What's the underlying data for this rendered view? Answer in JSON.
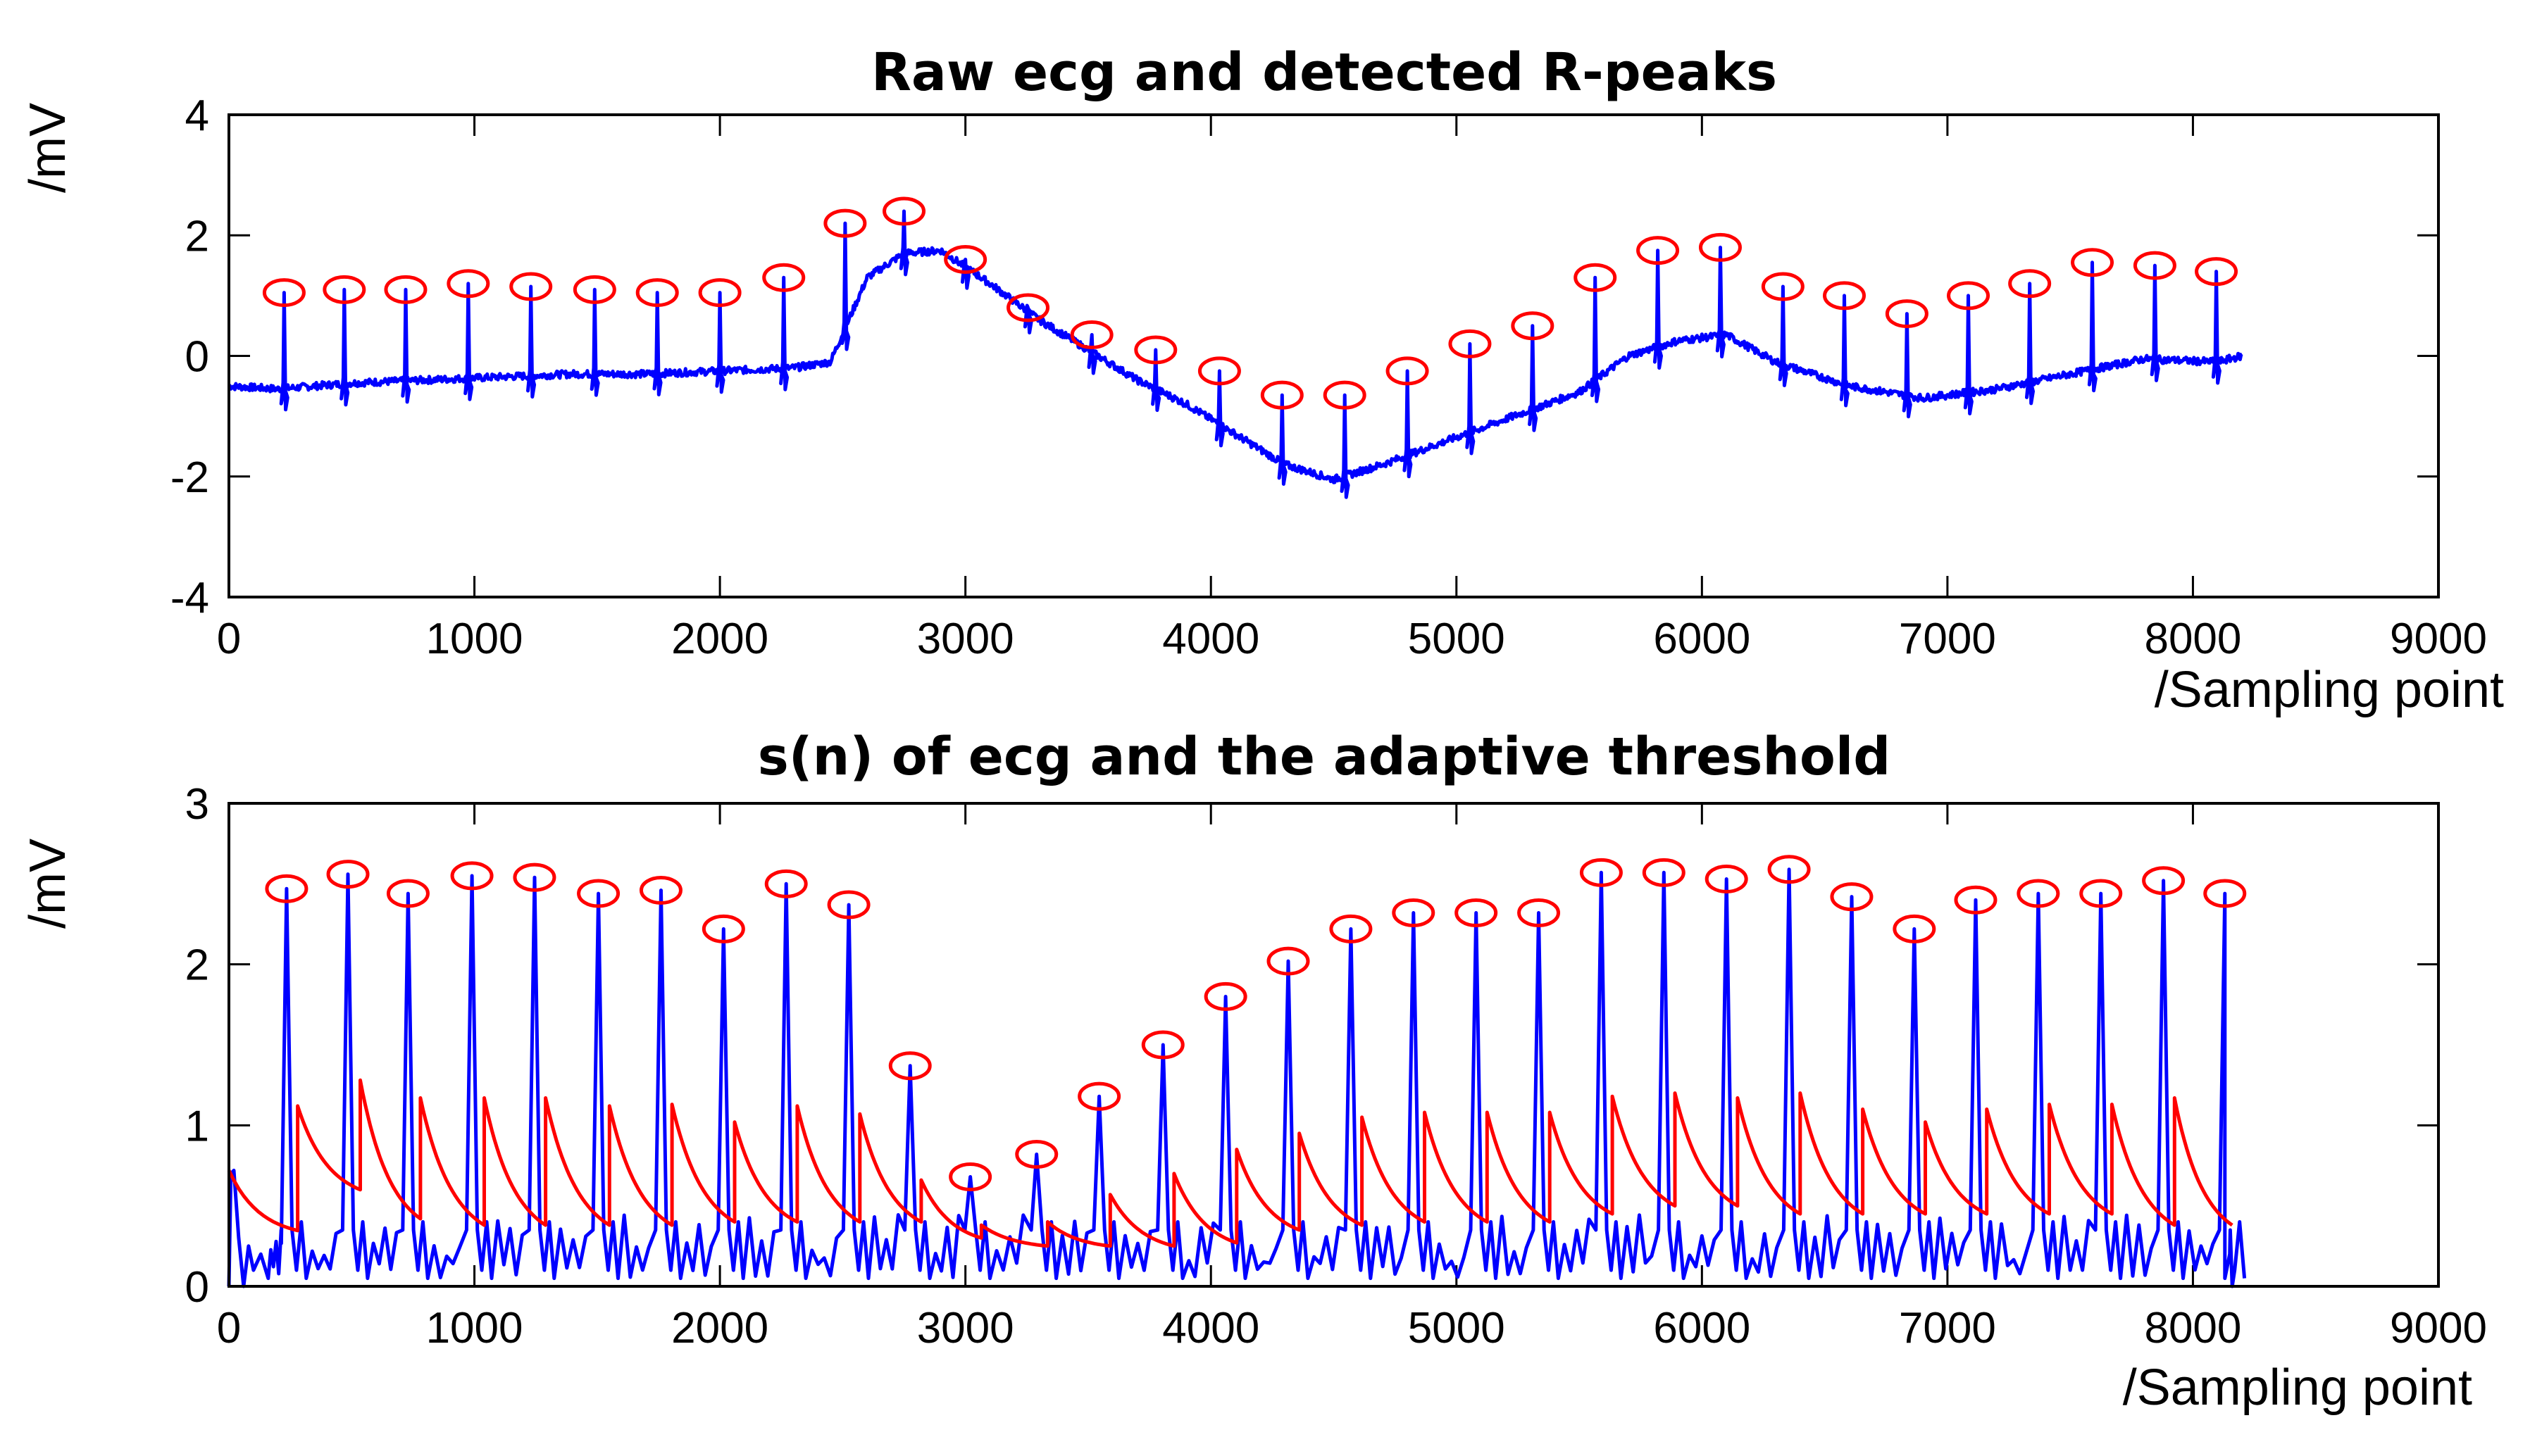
{
  "chart_data": [
    {
      "type": "line",
      "title": "Raw ecg and detected R-peaks",
      "xlabel": "/Sampling point",
      "ylabel": "/mV",
      "xlim": [
        0,
        9000
      ],
      "ylim": [
        -4,
        4
      ],
      "xticks": [
        0,
        1000,
        2000,
        3000,
        4000,
        5000,
        6000,
        7000,
        8000,
        9000
      ],
      "yticks": [
        4,
        2,
        0,
        -2,
        -4
      ],
      "colors": {
        "signal": "#0000ff",
        "peaks": "#ff0000"
      },
      "series": [
        {
          "name": "raw ecg",
          "baseline": {
            "x": [
              0,
              200,
              500,
              800,
              1100,
              1400,
              1700,
              2000,
              2300,
              2450,
              2600,
              2750,
              2900,
              3100,
              3300,
              3500,
              3700,
              3900,
              4100,
              4300,
              4500,
              4700,
              4900,
              5100,
              5300,
              5500,
              5700,
              5900,
              6100,
              6300,
              6600,
              6900,
              7200,
              7500,
              7800,
              8100,
              8200
            ],
            "y": [
              -0.5,
              -0.55,
              -0.45,
              -0.4,
              -0.35,
              -0.3,
              -0.3,
              -0.25,
              -0.2,
              -0.1,
              1.3,
              1.7,
              1.75,
              1.2,
              0.6,
              0.1,
              -0.4,
              -0.8,
              -1.3,
              -1.8,
              -2.05,
              -1.8,
              -1.5,
              -1.2,
              -0.9,
              -0.6,
              0.0,
              0.25,
              0.35,
              -0.1,
              -0.5,
              -0.7,
              -0.55,
              -0.3,
              -0.05,
              -0.1,
              0.0
            ]
          },
          "r_peaks": {
            "x": [
              225,
              470,
              720,
              975,
              1230,
              1490,
              1745,
              2000,
              2260,
              2510,
              2750,
              3000,
              3255,
              3515,
              3775,
              4035,
              4290,
              4545,
              4800,
              5055,
              5310,
              5565,
              5820,
              6075,
              6330,
              6580,
              6835,
              7085,
              7335,
              7590,
              7845,
              8095
            ],
            "y": [
              1.05,
              1.1,
              1.1,
              1.2,
              1.15,
              1.1,
              1.05,
              1.05,
              1.3,
              2.2,
              2.4,
              1.6,
              0.8,
              0.35,
              0.1,
              -0.25,
              -0.65,
              -0.65,
              -0.25,
              0.2,
              0.5,
              1.3,
              1.75,
              1.8,
              1.15,
              1.0,
              0.7,
              1.0,
              1.2,
              1.55,
              1.5,
              1.4
            ]
          }
        }
      ]
    },
    {
      "type": "line",
      "title": "s(n) of ecg and the adaptive threshold",
      "xlabel": "/Sampling point",
      "ylabel": "/mV",
      "xlim": [
        0,
        9000
      ],
      "ylim": [
        0,
        3
      ],
      "xticks": [
        0,
        1000,
        2000,
        3000,
        4000,
        5000,
        6000,
        7000,
        8000,
        9000
      ],
      "yticks": [
        3,
        2,
        1,
        0
      ],
      "colors": {
        "signal": "#0000ff",
        "threshold": "#ff0000",
        "peaks": "#ff0000"
      },
      "series": [
        {
          "name": "s(n)",
          "peaks": {
            "x": [
              235,
              485,
              730,
              990,
              1245,
              1505,
              1760,
              2015,
              2270,
              2525,
              2775,
              3020,
              3290,
              3545,
              3805,
              4060,
              4315,
              4570,
              4825,
              5080,
              5335,
              5590,
              5845,
              6100,
              6355,
              6610,
              6865,
              7115,
              7370,
              7625,
              7880,
              8130
            ],
            "y": [
              2.47,
              2.56,
              2.44,
              2.55,
              2.54,
              2.44,
              2.46,
              2.22,
              2.5,
              2.37,
              1.37,
              0.68,
              0.82,
              1.18,
              1.5,
              1.8,
              2.02,
              2.22,
              2.32,
              2.32,
              2.32,
              2.57,
              2.57,
              2.53,
              2.59,
              2.42,
              2.22,
              2.4,
              2.44,
              2.44,
              2.52,
              2.44
            ]
          }
        },
        {
          "name": "adaptive threshold",
          "start": {
            "x": 0,
            "y": 0.72
          },
          "segments": [
            {
              "x0": 280,
              "y0": 1.12,
              "y1": 0.6
            },
            {
              "x0": 535,
              "y0": 1.28,
              "y1": 0.42
            },
            {
              "x0": 780,
              "y0": 1.17,
              "y1": 0.38
            },
            {
              "x0": 1040,
              "y0": 1.17,
              "y1": 0.38
            },
            {
              "x0": 1290,
              "y0": 1.17,
              "y1": 0.38
            },
            {
              "x0": 1550,
              "y0": 1.12,
              "y1": 0.38
            },
            {
              "x0": 1805,
              "y0": 1.13,
              "y1": 0.4
            },
            {
              "x0": 2060,
              "y0": 1.02,
              "y1": 0.4
            },
            {
              "x0": 2315,
              "y0": 1.12,
              "y1": 0.4
            },
            {
              "x0": 2570,
              "y0": 1.07,
              "y1": 0.4
            },
            {
              "x0": 2820,
              "y0": 0.66,
              "y1": 0.3
            },
            {
              "x0": 3065,
              "y0": 0.38,
              "y1": 0.25
            },
            {
              "x0": 3335,
              "y0": 0.4,
              "y1": 0.25
            },
            {
              "x0": 3590,
              "y0": 0.57,
              "y1": 0.25
            },
            {
              "x0": 3850,
              "y0": 0.7,
              "y1": 0.27
            },
            {
              "x0": 4105,
              "y0": 0.85,
              "y1": 0.35
            },
            {
              "x0": 4360,
              "y0": 0.95,
              "y1": 0.38
            },
            {
              "x0": 4615,
              "y0": 1.05,
              "y1": 0.4
            },
            {
              "x0": 4870,
              "y0": 1.08,
              "y1": 0.4
            },
            {
              "x0": 5125,
              "y0": 1.08,
              "y1": 0.4
            },
            {
              "x0": 5380,
              "y0": 1.08,
              "y1": 0.45
            },
            {
              "x0": 5635,
              "y0": 1.18,
              "y1": 0.5
            },
            {
              "x0": 5890,
              "y0": 1.2,
              "y1": 0.5
            },
            {
              "x0": 6145,
              "y0": 1.17,
              "y1": 0.45
            },
            {
              "x0": 6400,
              "y0": 1.2,
              "y1": 0.45
            },
            {
              "x0": 6655,
              "y0": 1.1,
              "y1": 0.45
            },
            {
              "x0": 6910,
              "y0": 1.02,
              "y1": 0.45
            },
            {
              "x0": 7160,
              "y0": 1.1,
              "y1": 0.45
            },
            {
              "x0": 7415,
              "y0": 1.13,
              "y1": 0.45
            },
            {
              "x0": 7670,
              "y0": 1.13,
              "y1": 0.38
            },
            {
              "x0": 7925,
              "y0": 1.17,
              "y1": 0.38
            }
          ],
          "end_x": 8160
        }
      ]
    }
  ]
}
